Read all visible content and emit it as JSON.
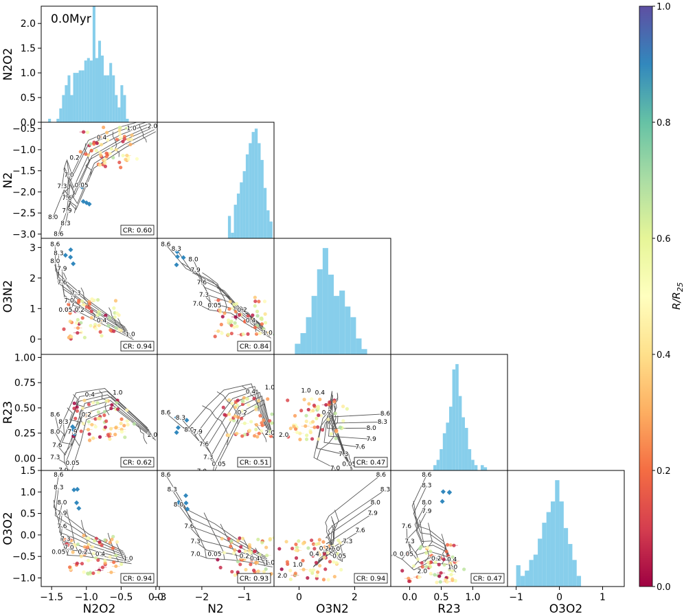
{
  "chart_data": {
    "type": "scatter",
    "title": "",
    "time_label": "0.0Myr",
    "variables": [
      "N2O2",
      "N2",
      "O3N2",
      "R23",
      "O3O2"
    ],
    "axes": {
      "N2O2": {
        "label": "N2O2",
        "range": [
          -1.65,
          0.02
        ],
        "ticks": [
          -1.5,
          -1.0,
          -0.5,
          0.0
        ],
        "tick_labels": [
          "−1.5",
          "−1.0",
          "−0.5",
          "0.0"
        ]
      },
      "N2": {
        "label": "N2",
        "range": [
          -3.05,
          -0.3
        ],
        "ticks": [
          -3,
          -2,
          -1
        ],
        "tick_labels": [
          "−3",
          "−2",
          "−1"
        ],
        "y_ticks": [
          -3.0,
          -2.5,
          -2.0,
          -1.5,
          -1.0,
          -0.5
        ],
        "y_tick_labels": [
          "−3.0",
          "−2.5",
          "−2.0",
          "−1.5",
          "−1.0",
          "−0.5"
        ]
      },
      "O3N2": {
        "label": "O3N2",
        "range": [
          -0.9,
          3.3
        ],
        "ticks": [
          0,
          2
        ],
        "tick_labels": [
          "0",
          "2"
        ],
        "y_ticks": [
          0,
          1,
          2,
          3
        ],
        "y_tick_labels": [
          "0",
          "1",
          "2",
          "3"
        ]
      },
      "R23": {
        "label": "R23",
        "range": [
          -0.3,
          1.55
        ],
        "ticks": [
          0.0,
          0.5,
          1.0
        ],
        "tick_labels": [
          "0.0",
          "0.5",
          "1.0"
        ],
        "y_range": [
          -0.12,
          1.03
        ],
        "y_ticks": [
          0.0,
          0.25,
          0.5,
          0.75,
          1.0
        ],
        "y_tick_labels": [
          "0.00",
          "0.25",
          "0.50",
          "0.75",
          "1.00"
        ]
      },
      "O3O2": {
        "label": "O3O2",
        "range": [
          -1.2,
          1.5
        ],
        "ticks": [
          -1,
          0,
          1
        ],
        "tick_labels": [
          "−1",
          "0",
          "1"
        ],
        "y_ticks": [
          -1.0,
          -0.5,
          0.0,
          0.5,
          1.0,
          1.5
        ],
        "y_tick_labels": [
          "−1.0",
          "−0.5",
          "0.0",
          "0.5",
          "1.0",
          "1.5"
        ]
      }
    },
    "histogram": {
      "color": "#87CEEB",
      "density_axis": {
        "range": [
          0,
          2.35
        ],
        "ticks": [
          0.0,
          0.5,
          1.0,
          1.5,
          2.0
        ],
        "tick_labels": [
          "0.0",
          "0.5",
          "1.0",
          "1.5",
          "2.0"
        ]
      },
      "N2O2": {
        "bin_centers": [
          -1.53,
          -1.49,
          -1.45,
          -1.41,
          -1.37,
          -1.33,
          -1.29,
          -1.25,
          -1.21,
          -1.17,
          -1.13,
          -1.09,
          -1.05,
          -1.01,
          -0.97,
          -0.93,
          -0.89,
          -0.85,
          -0.81,
          -0.77,
          -0.73,
          -0.69,
          -0.65,
          -0.61,
          -0.57,
          -0.53,
          -0.49,
          -0.45,
          -0.41
        ],
        "density": [
          0.07,
          0,
          0,
          0.07,
          0.28,
          0.55,
          0.75,
          0.95,
          0.55,
          1.0,
          1.0,
          1.05,
          1.05,
          1.25,
          1.3,
          1.25,
          2.35,
          1.3,
          1.65,
          1.35,
          0.95,
          0.95,
          1.2,
          0.95,
          0.55,
          0.3,
          0.75,
          0.55,
          0.07
        ]
      },
      "N2": {
        "bin_centers": [
          -1.35,
          -1.28,
          -1.21,
          -1.14,
          -1.07,
          -1.0,
          -0.93,
          -0.86,
          -0.79,
          -0.72,
          -0.65,
          -0.58,
          -0.51,
          -0.44,
          -0.37
        ],
        "rel_height": [
          0.2,
          0.05,
          0.3,
          0.4,
          0.5,
          0.6,
          0.75,
          0.85,
          0.95,
          0.98,
          0.85,
          0.7,
          0.45,
          0.25,
          0.15
        ]
      },
      "O3N2": {
        "bin_centers": [
          -0.05,
          0.15,
          0.35,
          0.55,
          0.75,
          0.95,
          1.15,
          1.35,
          1.55,
          1.75,
          1.95,
          2.15,
          2.35
        ],
        "rel_height": [
          0.1,
          0.2,
          0.35,
          0.55,
          0.8,
          1.0,
          0.75,
          0.55,
          0.6,
          0.45,
          0.35,
          0.15,
          0.05
        ]
      },
      "R23": {
        "bin_centers": [
          0.4,
          0.45,
          0.5,
          0.55,
          0.6,
          0.65,
          0.7,
          0.75,
          0.8,
          0.85,
          0.9,
          0.95,
          1.0,
          1.05,
          1.1,
          1.15,
          1.2
        ],
        "rel_height": [
          0.05,
          0.1,
          0.2,
          0.35,
          0.45,
          0.6,
          0.95,
          1.0,
          0.7,
          0.5,
          0.4,
          0.2,
          0.1,
          0.05,
          0,
          0.05,
          0.03
        ]
      },
      "O3O2": {
        "bin_centers": [
          -0.95,
          -0.85,
          -0.75,
          -0.65,
          -0.55,
          -0.45,
          -0.35,
          -0.25,
          -0.15,
          -0.05,
          0.05,
          0.15,
          0.25,
          0.35,
          0.45
        ],
        "rel_height": [
          0.2,
          0.1,
          0.15,
          0.25,
          0.3,
          0.45,
          0.6,
          0.7,
          0.8,
          1.0,
          0.8,
          0.55,
          0.4,
          0.25,
          0.1
        ]
      }
    },
    "panels": [
      {
        "x": "N2O2",
        "y": "N2",
        "cr": "CR: 0.60",
        "z_labels": [
          {
            "t": "1.0",
            "x": -0.35,
            "y": -0.5
          },
          {
            "t": "2.0",
            "x": -0.05,
            "y": -0.45
          },
          {
            "t": "0.4",
            "x": -0.78,
            "y": -0.72
          },
          {
            "t": "0.2",
            "x": -1.17,
            "y": -1.2
          },
          {
            "t": "0.05",
            "x": -1.07,
            "y": -1.85
          }
        ],
        "oh_labels": [
          {
            "t": "7.0",
            "x": -1.25,
            "y": -1.6
          },
          {
            "t": "7.3",
            "x": -1.35,
            "y": -1.87
          },
          {
            "t": "7.6",
            "x": -1.28,
            "y": -2.15
          },
          {
            "t": "7.9",
            "x": -1.28,
            "y": -2.45
          },
          {
            "t": "8.0",
            "x": -1.48,
            "y": -2.6
          },
          {
            "t": "8.3",
            "x": -1.3,
            "y": -2.75
          },
          {
            "t": "8.6",
            "x": -1.4,
            "y": -3.0
          }
        ]
      },
      {
        "x": "N2O2",
        "y": "O3N2",
        "cr": "CR: 0.94",
        "z_labels": [
          {
            "t": "1.0",
            "x": -0.37,
            "y": 0.15
          },
          {
            "t": "0.4",
            "x": -0.78,
            "y": 0.6
          },
          {
            "t": "0.2",
            "x": -1.1,
            "y": 0.95
          },
          {
            "t": "0.05",
            "x": -1.3,
            "y": 0.95
          }
        ],
        "oh_labels": [
          {
            "t": "8.6",
            "x": -1.45,
            "y": 3.1
          },
          {
            "t": "8.3",
            "x": -1.4,
            "y": 2.8
          },
          {
            "t": "8.0",
            "x": -1.45,
            "y": 2.55
          },
          {
            "t": "7.9",
            "x": -1.35,
            "y": 2.3
          },
          {
            "t": "7.6",
            "x": -1.35,
            "y": 1.85
          },
          {
            "t": "7.3",
            "x": -1.15,
            "y": 1.5
          },
          {
            "t": "7.0",
            "x": -1.25,
            "y": 1.25
          }
        ]
      },
      {
        "x": "N2",
        "y": "O3N2",
        "cr": "CR: 0.84",
        "z_labels": [
          {
            "t": "1.0",
            "x": -0.45,
            "y": 0.2
          },
          {
            "t": "0.4",
            "x": -0.85,
            "y": 0.6
          },
          {
            "t": "0.2",
            "x": -1.05,
            "y": 0.95
          },
          {
            "t": "0.05",
            "x": -1.7,
            "y": 1.1
          }
        ],
        "oh_labels": [
          {
            "t": "8.6",
            "x": -2.85,
            "y": 3.1
          },
          {
            "t": "8.3",
            "x": -2.6,
            "y": 2.95
          },
          {
            "t": "8.0",
            "x": -2.2,
            "y": 2.6
          },
          {
            "t": "7.9",
            "x": -2.15,
            "y": 2.25
          },
          {
            "t": "7.6",
            "x": -2.0,
            "y": 1.85
          },
          {
            "t": "7.3",
            "x": -1.95,
            "y": 1.45
          },
          {
            "t": "7.0",
            "x": -2.1,
            "y": 1.15
          }
        ]
      },
      {
        "x": "N2O2",
        "y": "R23",
        "cr": "CR: 0.62",
        "z_labels": [
          {
            "t": "1.0",
            "x": -0.55,
            "y": 0.65
          },
          {
            "t": "0.4",
            "x": -0.95,
            "y": 0.63
          },
          {
            "t": "0.2",
            "x": -1.0,
            "y": 0.43
          },
          {
            "t": "0.05",
            "x": -1.2,
            "y": -0.05
          },
          {
            "t": "2.0",
            "x": -0.05,
            "y": 0.23
          }
        ],
        "oh_labels": [
          {
            "t": "8.6",
            "x": -1.45,
            "y": 0.43
          },
          {
            "t": "8.3",
            "x": -1.33,
            "y": 0.36
          },
          {
            "t": "8.0",
            "x": -1.45,
            "y": 0.26
          },
          {
            "t": "7.9",
            "x": -1.2,
            "y": 0.26
          },
          {
            "t": "7.6",
            "x": -1.42,
            "y": 0.13
          },
          {
            "t": "7.3",
            "x": -1.45,
            "y": 0.01
          },
          {
            "t": "7.0",
            "x": -1.33,
            "y": -0.12
          }
        ]
      },
      {
        "x": "N2",
        "y": "R23",
        "cr": "CR: 0.51",
        "z_labels": [
          {
            "t": "1.0",
            "x": -0.4,
            "y": 0.7
          },
          {
            "t": "0.4",
            "x": -0.85,
            "y": 0.66
          },
          {
            "t": "0.2",
            "x": -1.05,
            "y": 0.45
          },
          {
            "t": "0.05",
            "x": -1.6,
            "y": -0.06
          },
          {
            "t": "2.0",
            "x": -0.4,
            "y": 0.25
          }
        ],
        "oh_labels": [
          {
            "t": "8.6",
            "x": -2.85,
            "y": 0.45
          },
          {
            "t": "8.3",
            "x": -2.5,
            "y": 0.4
          },
          {
            "t": "8.0",
            "x": -2.3,
            "y": 0.28
          },
          {
            "t": "7.9",
            "x": -2.1,
            "y": 0.26
          },
          {
            "t": "7.6",
            "x": -1.95,
            "y": 0.14
          },
          {
            "t": "7.3",
            "x": -1.85,
            "y": 0.01
          },
          {
            "t": "7.0",
            "x": -2.0,
            "y": -0.13
          }
        ]
      },
      {
        "x": "O3N2",
        "y": "R23",
        "cr": "CR: 0.47",
        "z_labels": [
          {
            "t": "1.0",
            "x": 0.25,
            "y": 0.67
          },
          {
            "t": "0.4",
            "x": 0.75,
            "y": 0.65
          },
          {
            "t": "0.2",
            "x": 1.0,
            "y": 0.45
          },
          {
            "t": "0.05",
            "x": 1.8,
            "y": -0.06
          },
          {
            "t": "2.0",
            "x": -0.55,
            "y": 0.23
          }
        ],
        "oh_labels": [
          {
            "t": "8.6",
            "x": 3.1,
            "y": 0.44
          },
          {
            "t": "8.3",
            "x": 3.0,
            "y": 0.36
          },
          {
            "t": "8.0",
            "x": 2.6,
            "y": 0.3
          },
          {
            "t": "7.9",
            "x": 2.6,
            "y": 0.19
          },
          {
            "t": "7.6",
            "x": 2.2,
            "y": 0.11
          },
          {
            "t": "7.3",
            "x": 1.6,
            "y": 0.04
          },
          {
            "t": "7.0",
            "x": 1.3,
            "y": -0.1
          }
        ]
      },
      {
        "x": "N2O2",
        "y": "O3O2",
        "cr": "CR: 0.94",
        "z_labels": [
          {
            "t": "1.0",
            "x": -0.4,
            "y": -0.55
          },
          {
            "t": "0.4",
            "x": -0.8,
            "y": -0.45
          },
          {
            "t": "0.2",
            "x": -1.05,
            "y": -0.4
          },
          {
            "t": "0.05",
            "x": -1.4,
            "y": -0.4
          }
        ],
        "oh_labels": [
          {
            "t": "8.6",
            "x": -1.4,
            "y": 1.4
          },
          {
            "t": "8.3",
            "x": -1.4,
            "y": 1.1
          },
          {
            "t": "8.0",
            "x": -1.35,
            "y": 0.75
          },
          {
            "t": "7.9",
            "x": -1.35,
            "y": 0.5
          },
          {
            "t": "7.6",
            "x": -1.35,
            "y": 0.2
          },
          {
            "t": "7.3",
            "x": -1.3,
            "y": -0.1
          },
          {
            "t": "7.0",
            "x": -1.25,
            "y": -0.3
          }
        ]
      },
      {
        "x": "N2",
        "y": "O3O2",
        "cr": "CR: 0.93",
        "z_labels": [
          {
            "t": "1.0",
            "x": -0.4,
            "y": -0.65
          },
          {
            "t": "0.4",
            "x": -0.75,
            "y": -0.55
          },
          {
            "t": "0.2",
            "x": -1.0,
            "y": -0.5
          },
          {
            "t": "0.05",
            "x": -1.7,
            "y": -0.45
          }
        ],
        "oh_labels": [
          {
            "t": "8.6",
            "x": -2.85,
            "y": 1.4
          },
          {
            "t": "8.3",
            "x": -2.7,
            "y": 1.05
          },
          {
            "t": "8.0",
            "x": -2.55,
            "y": 0.7
          },
          {
            "t": "7.6",
            "x": -2.3,
            "y": 0.2
          },
          {
            "t": "7.3",
            "x": -2.15,
            "y": -0.15
          },
          {
            "t": "7.0",
            "x": -2.15,
            "y": -0.45
          }
        ]
      },
      {
        "x": "O3N2",
        "y": "O3O2",
        "cr": "CR: 0.94",
        "z_labels": [
          {
            "t": "1.0",
            "x": -0.05,
            "y": -0.7
          },
          {
            "t": "0.4",
            "x": 0.55,
            "y": -0.45
          },
          {
            "t": "0.2",
            "x": 0.9,
            "y": -0.32
          },
          {
            "t": "0.05",
            "x": 1.45,
            "y": -0.5
          },
          {
            "t": "2.0",
            "x": -0.6,
            "y": -0.95
          }
        ],
        "oh_labels": [
          {
            "t": "8.6",
            "x": 2.95,
            "y": 1.4
          },
          {
            "t": "8.3",
            "x": 3.1,
            "y": 1.05
          },
          {
            "t": "8.0",
            "x": 2.75,
            "y": 0.75
          },
          {
            "t": "7.9",
            "x": 2.65,
            "y": 0.5
          },
          {
            "t": "7.6",
            "x": 2.2,
            "y": 0.1
          },
          {
            "t": "7.3",
            "x": 1.75,
            "y": -0.15
          },
          {
            "t": "7.0",
            "x": 1.3,
            "y": -0.33
          }
        ]
      },
      {
        "x": "R23",
        "y": "O3O2",
        "cr": "CR: 0.47",
        "z_labels": [
          {
            "t": "1.0",
            "x": 0.68,
            "y": -0.75
          },
          {
            "t": "0.4",
            "x": 0.67,
            "y": -0.58
          },
          {
            "t": "0.2",
            "x": 0.42,
            "y": -0.55
          },
          {
            "t": "0.05",
            "x": -0.05,
            "y": -0.45
          },
          {
            "t": "2.0",
            "x": 0.2,
            "y": -0.85
          }
        ],
        "oh_labels": [
          {
            "t": "8.6",
            "x": 0.27,
            "y": 1.4
          },
          {
            "t": "8.3",
            "x": 0.27,
            "y": 1.15
          },
          {
            "t": "8.0",
            "x": 0.27,
            "y": 0.75
          },
          {
            "t": "7.9",
            "x": 0.27,
            "y": 0.55
          },
          {
            "t": "7.6",
            "x": -0.05,
            "y": 0.2
          },
          {
            "t": "7.3",
            "x": 0.0,
            "y": -0.15
          },
          {
            "t": "7.0",
            "x": -0.28,
            "y": -0.45
          }
        ]
      }
    ],
    "colorbar": {
      "label_base": "R/R",
      "label_sub": "25",
      "range": [
        0.0,
        1.0
      ],
      "ticks": [
        0.0,
        0.2,
        0.4,
        0.6,
        0.8,
        1.0
      ],
      "tick_labels": [
        "0.0",
        "0.2",
        "0.4",
        "0.6",
        "0.8",
        "1.0"
      ],
      "colormap": "Spectral",
      "stops": [
        "#9e0142",
        "#d53e4f",
        "#f46d43",
        "#fdae61",
        "#fee08b",
        "#ffffbf",
        "#e6f598",
        "#abdda4",
        "#66c2a5",
        "#3288bd",
        "#5e4fa2"
      ]
    },
    "grid_color": "#555555"
  }
}
